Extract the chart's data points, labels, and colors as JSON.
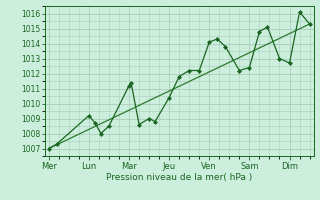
{
  "xlabel": "Pression niveau de la mer( hPa )",
  "bg_color": "#cceedd",
  "grid_color": "#aaccbb",
  "line_color": "#1a6620",
  "marker_color": "#1a6620",
  "trend_color": "#2d7a2d",
  "ylim": [
    1006.5,
    1016.5
  ],
  "yticks": [
    1007,
    1008,
    1009,
    1010,
    1011,
    1012,
    1013,
    1014,
    1015,
    1016
  ],
  "x_day_labels": [
    "Mer",
    "Lun",
    "Mar",
    "Jeu",
    "Ven",
    "Sam",
    "Dim"
  ],
  "x_day_positions": [
    0,
    1,
    2,
    3,
    4,
    5,
    6
  ],
  "xlim": [
    -0.1,
    6.6
  ],
  "data_x": [
    0.0,
    0.2,
    1.0,
    1.15,
    1.3,
    1.5,
    2.0,
    2.05,
    2.25,
    2.5,
    2.65,
    3.0,
    3.25,
    3.5,
    3.75,
    4.0,
    4.2,
    4.4,
    4.75,
    5.0,
    5.25,
    5.45,
    5.75,
    6.0,
    6.25,
    6.5
  ],
  "data_y": [
    1007.0,
    1007.3,
    1009.2,
    1008.7,
    1008.0,
    1008.5,
    1011.2,
    1011.4,
    1008.6,
    1009.0,
    1008.8,
    1010.4,
    1011.8,
    1012.2,
    1012.2,
    1014.1,
    1014.3,
    1013.8,
    1012.2,
    1012.4,
    1014.8,
    1015.1,
    1013.0,
    1012.7,
    1016.1,
    1015.3
  ],
  "trend_x": [
    0.0,
    6.5
  ],
  "trend_y": [
    1007.0,
    1015.3
  ],
  "figsize": [
    3.2,
    2.0
  ],
  "dpi": 100
}
